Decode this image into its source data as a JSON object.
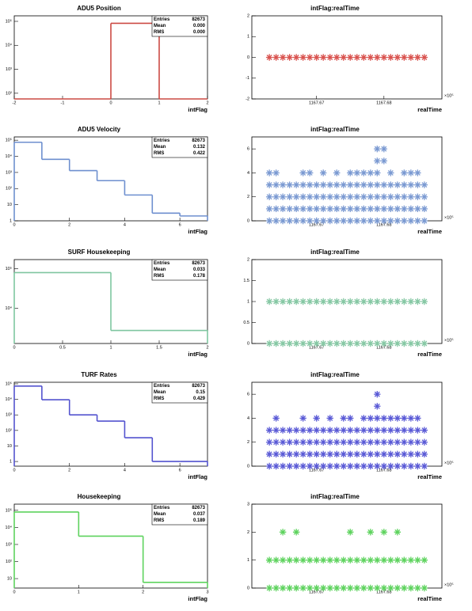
{
  "chart_data": [
    {
      "type": "histogram",
      "title": "ADU5 Position",
      "bins": [
        -2,
        -1,
        0,
        1,
        2
      ],
      "counts": [
        0,
        0,
        82673,
        0
      ],
      "color": "#cc4a44",
      "xlim": [
        -2,
        2
      ],
      "xticks": [
        -2,
        -1,
        0,
        1,
        2
      ],
      "ylim": [
        58,
        170000
      ],
      "log_y": true,
      "yticks": [
        {
          "value": 100,
          "label": "10²"
        },
        {
          "value": 1000,
          "label": "10³"
        },
        {
          "value": 10000,
          "label": "10⁴"
        },
        {
          "value": 100000,
          "label": "10⁵"
        }
      ],
      "x_label": "intFlag",
      "stats": [
        {
          "name": "Entries",
          "value": 82673
        },
        {
          "name": "Mean",
          "value": 0,
          "value_label": "0.000"
        },
        {
          "name": "RMS",
          "value": 0,
          "value_label": "0.000"
        }
      ]
    },
    {
      "type": "scatter",
      "title": "intFlag:realTime",
      "color": "#d9534f",
      "x": [
        1167.663,
        1167.664,
        1167.665,
        1167.666,
        1167.667,
        1167.668,
        1167.669,
        1167.67,
        1167.671,
        1167.672,
        1167.673,
        1167.674,
        1167.675,
        1167.676,
        1167.677,
        1167.678,
        1167.679,
        1167.68,
        1167.681,
        1167.682,
        1167.683,
        1167.684,
        1167.685,
        1167.686
      ],
      "series": [
        {
          "values": [
            0,
            0,
            0,
            0,
            0,
            0,
            0,
            0,
            0,
            0,
            0,
            0,
            0,
            0,
            0,
            0,
            0,
            0,
            0,
            0,
            0,
            0,
            0,
            0
          ]
        }
      ],
      "xlim": [
        1167.6604,
        1167.6886
      ],
      "xticks": [
        1167.67,
        1167.68
      ],
      "x_multiplier": "×10⁵",
      "ylim": [
        -2,
        2
      ],
      "yticks": [
        -2,
        -1,
        0,
        1,
        2
      ],
      "x_label": "realTime"
    },
    {
      "type": "histogram",
      "title": "ADU5 Velocity",
      "bins": [
        0,
        1,
        2,
        3,
        4,
        5,
        6,
        7
      ],
      "counts": [
        74500,
        6500,
        1300,
        310,
        40,
        3,
        2
      ],
      "color": "#6e8fcf",
      "xlim": [
        0,
        7
      ],
      "xticks": [
        0,
        2,
        4,
        6
      ],
      "ylim": [
        1,
        160000
      ],
      "log_y": true,
      "yticks": [
        1,
        10,
        {
          "value": 100,
          "label": "10²"
        },
        {
          "value": 1000,
          "label": "10³"
        },
        {
          "value": 10000,
          "label": "10⁴"
        },
        {
          "value": 100000,
          "label": "10⁵"
        }
      ],
      "x_label": "intFlag",
      "stats": [
        {
          "name": "Entries",
          "value": 82673
        },
        {
          "name": "Mean",
          "value": 0.132
        },
        {
          "name": "RMS",
          "value": 0.422
        }
      ]
    },
    {
      "type": "scatter",
      "title": "intFlag:realTime",
      "color": "#7b9ad2",
      "x": [
        1167.663,
        1167.664,
        1167.665,
        1167.666,
        1167.667,
        1167.668,
        1167.669,
        1167.67,
        1167.671,
        1167.672,
        1167.673,
        1167.674,
        1167.675,
        1167.676,
        1167.677,
        1167.678,
        1167.679,
        1167.68,
        1167.681,
        1167.682,
        1167.683,
        1167.684,
        1167.685,
        1167.686
      ],
      "series": [
        {
          "values": [
            0,
            0,
            0,
            0,
            0,
            0,
            0,
            0,
            0,
            0,
            0,
            0,
            0,
            0,
            0,
            0,
            0,
            0,
            0,
            0,
            0,
            0,
            0,
            0
          ]
        },
        {
          "values": [
            1,
            1,
            1,
            1,
            1,
            1,
            1,
            1,
            1,
            1,
            1,
            1,
            1,
            1,
            1,
            1,
            1,
            1,
            1,
            1,
            1,
            1,
            1,
            1
          ]
        },
        {
          "values": [
            2,
            2,
            2,
            2,
            2,
            2,
            2,
            2,
            2,
            2,
            2,
            2,
            2,
            2,
            2,
            2,
            2,
            2,
            2,
            2,
            2,
            2,
            2,
            2
          ]
        },
        {
          "values": [
            3,
            3,
            3,
            3,
            3,
            3,
            3,
            3,
            3,
            3,
            3,
            3,
            3,
            3,
            3,
            3,
            3,
            3,
            3,
            3,
            3,
            3,
            3,
            3
          ]
        },
        {
          "values": [
            4,
            4,
            null,
            null,
            null,
            4,
            4,
            null,
            4,
            null,
            4,
            null,
            4,
            4,
            4,
            4,
            4,
            null,
            4,
            null,
            4,
            4,
            4,
            null
          ]
        },
        {
          "values": [
            null,
            null,
            null,
            null,
            null,
            null,
            null,
            null,
            null,
            null,
            null,
            null,
            null,
            null,
            null,
            null,
            5,
            5,
            null,
            null,
            null,
            null,
            null,
            null
          ]
        },
        {
          "values": [
            null,
            null,
            null,
            null,
            null,
            null,
            null,
            null,
            null,
            null,
            null,
            null,
            null,
            null,
            null,
            null,
            6,
            6,
            null,
            null,
            null,
            null,
            null,
            null
          ]
        }
      ],
      "xlim": [
        1167.6604,
        1167.6886
      ],
      "xticks": [
        1167.67,
        1167.68
      ],
      "x_multiplier": "×10⁵",
      "ylim": [
        0,
        7
      ],
      "yticks": [
        0,
        2,
        4,
        6
      ],
      "x_label": "realTime"
    },
    {
      "type": "histogram",
      "title": "SURF Housekeeping",
      "bins": [
        0,
        1,
        2
      ],
      "counts": [
        79900,
        2770
      ],
      "color": "#7fc6a0",
      "xlim": [
        0,
        2
      ],
      "xticks": [
        0,
        0.5,
        1,
        1.5,
        2
      ],
      "ylim": [
        1300,
        170000
      ],
      "log_y": true,
      "yticks": [
        {
          "value": 10000,
          "label": "10⁴"
        },
        {
          "value": 100000,
          "label": "10⁵"
        }
      ],
      "x_label": "intFlag",
      "stats": [
        {
          "name": "Entries",
          "value": 82673
        },
        {
          "name": "Mean",
          "value": 0.033
        },
        {
          "name": "RMS",
          "value": 0.178
        }
      ]
    },
    {
      "type": "scatter",
      "title": "intFlag:realTime",
      "color": "#86c8a4",
      "x": [
        1167.663,
        1167.664,
        1167.665,
        1167.666,
        1167.667,
        1167.668,
        1167.669,
        1167.67,
        1167.671,
        1167.672,
        1167.673,
        1167.674,
        1167.675,
        1167.676,
        1167.677,
        1167.678,
        1167.679,
        1167.68,
        1167.681,
        1167.682,
        1167.683,
        1167.684,
        1167.685,
        1167.686
      ],
      "series": [
        {
          "values": [
            0,
            0,
            0,
            0,
            0,
            0,
            0,
            0,
            0,
            0,
            0,
            0,
            0,
            0,
            0,
            0,
            0,
            0,
            0,
            0,
            0,
            0,
            0,
            0
          ]
        },
        {
          "values": [
            1,
            1,
            1,
            1,
            1,
            1,
            1,
            1,
            1,
            1,
            1,
            1,
            1,
            1,
            1,
            1,
            1,
            1,
            1,
            1,
            1,
            1,
            1,
            1
          ]
        }
      ],
      "xlim": [
        1167.6604,
        1167.6886
      ],
      "xticks": [
        1167.67,
        1167.68
      ],
      "x_multiplier": "×10⁵",
      "ylim": [
        0,
        2
      ],
      "yticks": [
        0,
        0.5,
        1,
        1.5,
        2
      ],
      "x_label": "realTime"
    },
    {
      "type": "histogram",
      "title": "TURF Rates",
      "bins": [
        0,
        1,
        2,
        3,
        4,
        5,
        6,
        7
      ],
      "counts": [
        71700,
        9500,
        1000,
        400,
        34,
        1,
        1
      ],
      "color": "#5353cf",
      "xlim": [
        0,
        7
      ],
      "xticks": [
        0,
        2,
        4,
        6
      ],
      "ylim": [
        0.5,
        126000
      ],
      "log_y": true,
      "yticks": [
        1,
        10,
        {
          "value": 100,
          "label": "10²"
        },
        {
          "value": 1000,
          "label": "10³"
        },
        {
          "value": 10000,
          "label": "10⁴"
        },
        {
          "value": 100000,
          "label": "10⁵"
        }
      ],
      "x_label": "intFlag",
      "stats": [
        {
          "name": "Entries",
          "value": 82673
        },
        {
          "name": "Mean",
          "value": 0.15
        },
        {
          "name": "RMS",
          "value": 0.429
        }
      ]
    },
    {
      "type": "scatter",
      "title": "intFlag:realTime",
      "color": "#5a5ad6",
      "x": [
        1167.663,
        1167.664,
        1167.665,
        1167.666,
        1167.667,
        1167.668,
        1167.669,
        1167.67,
        1167.671,
        1167.672,
        1167.673,
        1167.674,
        1167.675,
        1167.676,
        1167.677,
        1167.678,
        1167.679,
        1167.68,
        1167.681,
        1167.682,
        1167.683,
        1167.684,
        1167.685,
        1167.686
      ],
      "series": [
        {
          "values": [
            0,
            0,
            0,
            0,
            0,
            0,
            0,
            0,
            0,
            0,
            0,
            0,
            0,
            0,
            0,
            0,
            0,
            0,
            0,
            0,
            0,
            0,
            0,
            0
          ]
        },
        {
          "values": [
            1,
            1,
            1,
            1,
            1,
            1,
            1,
            1,
            1,
            1,
            1,
            1,
            1,
            1,
            1,
            1,
            1,
            1,
            1,
            1,
            1,
            1,
            1,
            1
          ]
        },
        {
          "values": [
            2,
            2,
            2,
            2,
            2,
            2,
            2,
            2,
            2,
            2,
            2,
            2,
            2,
            2,
            2,
            2,
            2,
            2,
            2,
            2,
            2,
            2,
            2,
            2
          ]
        },
        {
          "values": [
            3,
            3,
            3,
            3,
            3,
            3,
            3,
            3,
            3,
            3,
            3,
            3,
            3,
            3,
            3,
            3,
            3,
            3,
            3,
            3,
            3,
            3,
            3,
            3
          ]
        },
        {
          "values": [
            null,
            4,
            null,
            null,
            null,
            4,
            null,
            4,
            null,
            4,
            null,
            4,
            4,
            null,
            4,
            4,
            4,
            4,
            4,
            4,
            4,
            4,
            4,
            null
          ]
        },
        {
          "values": [
            null,
            null,
            null,
            null,
            null,
            null,
            null,
            null,
            null,
            null,
            null,
            null,
            null,
            null,
            null,
            null,
            5,
            null,
            null,
            null,
            null,
            null,
            null,
            null
          ]
        },
        {
          "values": [
            null,
            null,
            null,
            null,
            null,
            null,
            null,
            null,
            null,
            null,
            null,
            null,
            null,
            null,
            null,
            null,
            6,
            null,
            null,
            null,
            null,
            null,
            null,
            null
          ]
        }
      ],
      "xlim": [
        1167.6604,
        1167.6886
      ],
      "xticks": [
        1167.67,
        1167.68
      ],
      "x_multiplier": "×10⁵",
      "ylim": [
        0,
        7
      ],
      "yticks": [
        0,
        2,
        4,
        6
      ],
      "x_label": "realTime"
    },
    {
      "type": "histogram",
      "title": "Housekeeping",
      "bins": [
        0,
        1,
        2,
        3
      ],
      "counts": [
        79600,
        3060,
        6
      ],
      "color": "#5ed35e",
      "xlim": [
        0,
        3
      ],
      "xticks": [
        0,
        1,
        2,
        3
      ],
      "ylim": [
        2.8,
        230000
      ],
      "log_y": true,
      "yticks": [
        10,
        {
          "value": 100,
          "label": "10²"
        },
        {
          "value": 1000,
          "label": "10³"
        },
        {
          "value": 10000,
          "label": "10⁴"
        },
        {
          "value": 100000,
          "label": "10⁵"
        }
      ],
      "x_label": "intFlag",
      "stats": [
        {
          "name": "Entries",
          "value": 82673
        },
        {
          "name": "Mean",
          "value": 0.037
        },
        {
          "name": "RMS",
          "value": 0.189
        }
      ]
    },
    {
      "type": "scatter",
      "title": "intFlag:realTime",
      "color": "#5ed35e",
      "x": [
        1167.663,
        1167.664,
        1167.665,
        1167.666,
        1167.667,
        1167.668,
        1167.669,
        1167.67,
        1167.671,
        1167.672,
        1167.673,
        1167.674,
        1167.675,
        1167.676,
        1167.677,
        1167.678,
        1167.679,
        1167.68,
        1167.681,
        1167.682,
        1167.683,
        1167.684,
        1167.685,
        1167.686
      ],
      "series": [
        {
          "values": [
            0,
            0,
            0,
            0,
            0,
            0,
            0,
            0,
            0,
            0,
            0,
            0,
            0,
            0,
            0,
            0,
            0,
            0,
            0,
            0,
            0,
            0,
            0,
            0
          ]
        },
        {
          "values": [
            1,
            1,
            1,
            1,
            1,
            1,
            1,
            1,
            1,
            1,
            1,
            1,
            1,
            1,
            1,
            1,
            1,
            1,
            1,
            1,
            1,
            1,
            1,
            1
          ]
        },
        {
          "values": [
            null,
            null,
            2,
            null,
            2,
            null,
            null,
            null,
            null,
            null,
            null,
            null,
            2,
            null,
            null,
            2,
            null,
            2,
            null,
            2,
            null,
            null,
            null,
            null
          ]
        }
      ],
      "xlim": [
        1167.6604,
        1167.6886
      ],
      "xticks": [
        1167.67,
        1167.68
      ],
      "x_multiplier": "×10⁵",
      "ylim": [
        0,
        3
      ],
      "yticks": [
        0,
        1,
        2,
        3
      ],
      "x_label": "realTime"
    }
  ]
}
